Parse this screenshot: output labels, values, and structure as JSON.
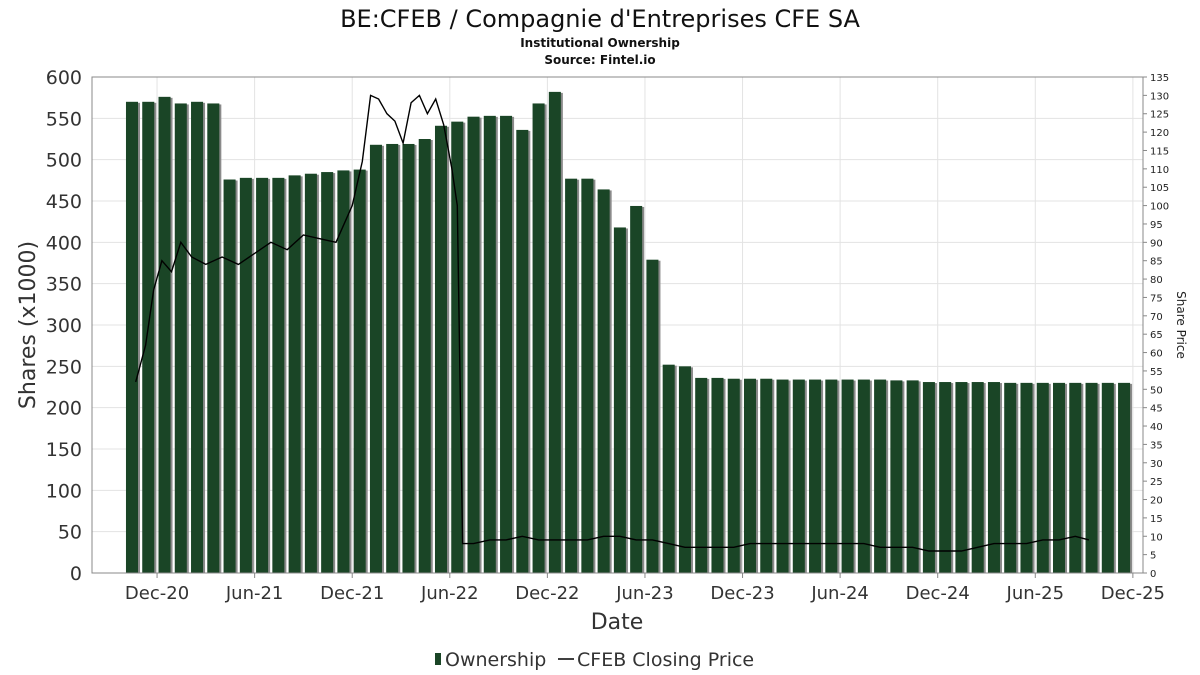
{
  "chart_data": {
    "type": "bar",
    "title": "BE:CFEB / Compagnie d'Entreprises CFE SA",
    "subtitle": "Institutional Ownership",
    "source": "Source: Fintel.io",
    "xlabel": "Date",
    "ylabel": "Shares (x1000)",
    "y2label": "Share Price",
    "ylim": [
      0,
      600
    ],
    "y2lim": [
      0,
      135
    ],
    "yticks": [
      0,
      50,
      100,
      150,
      200,
      250,
      300,
      350,
      400,
      450,
      500,
      550,
      600
    ],
    "y2ticks": [
      0,
      5,
      10,
      15,
      20,
      25,
      30,
      35,
      40,
      45,
      50,
      55,
      60,
      65,
      70,
      75,
      80,
      85,
      90,
      95,
      100,
      105,
      110,
      115,
      120,
      125,
      130,
      135
    ],
    "xticks": [
      "Dec-20",
      "Jun-21",
      "Dec-21",
      "Jun-22",
      "Dec-22",
      "Jun-23",
      "Dec-23",
      "Jun-24",
      "Dec-24",
      "Jun-25",
      "Dec-25"
    ],
    "grid": true,
    "legend_position": "bottom",
    "colors": {
      "ownership": "#1a4526",
      "ownership_shadow": "#8a8a8a",
      "price": "#000000",
      "grid": "#e3e3e3"
    },
    "series": [
      {
        "name": "Ownership",
        "type": "bar",
        "x_start": "2020-10-15",
        "x_step_months": 1,
        "values": [
          570,
          570,
          576,
          568,
          570,
          568,
          476,
          478,
          478,
          478,
          481,
          483,
          485,
          487,
          488,
          518,
          519,
          519,
          525,
          541,
          546,
          552,
          553,
          553,
          536,
          568,
          582,
          477,
          477,
          464,
          418,
          444,
          379,
          252,
          250,
          236,
          236,
          235,
          235,
          235,
          234,
          234,
          234,
          234,
          234,
          234,
          234,
          233,
          233,
          231,
          231,
          231,
          231,
          231,
          230,
          230,
          230,
          230,
          230,
          230,
          230,
          230
        ]
      },
      {
        "name": "CFEB Closing Price",
        "type": "line",
        "points": [
          [
            "2020-10-22",
            52
          ],
          [
            "2020-11-10",
            62
          ],
          [
            "2020-11-25",
            77
          ],
          [
            "2020-12-10",
            85
          ],
          [
            "2020-12-28",
            82
          ],
          [
            "2021-01-15",
            90
          ],
          [
            "2021-02-05",
            86
          ],
          [
            "2021-03-01",
            84
          ],
          [
            "2021-04-01",
            86
          ],
          [
            "2021-05-01",
            84
          ],
          [
            "2021-06-01",
            87
          ],
          [
            "2021-07-01",
            90
          ],
          [
            "2021-08-01",
            88
          ],
          [
            "2021-09-01",
            92
          ],
          [
            "2021-10-01",
            91
          ],
          [
            "2021-11-01",
            90
          ],
          [
            "2021-12-01",
            100
          ],
          [
            "2021-12-20",
            112
          ],
          [
            "2022-01-05",
            130
          ],
          [
            "2022-01-20",
            129
          ],
          [
            "2022-02-05",
            125
          ],
          [
            "2022-02-20",
            123
          ],
          [
            "2022-03-05",
            117
          ],
          [
            "2022-03-20",
            128
          ],
          [
            "2022-04-05",
            130
          ],
          [
            "2022-04-20",
            125
          ],
          [
            "2022-05-05",
            129
          ],
          [
            "2022-05-20",
            122
          ],
          [
            "2022-06-05",
            110
          ],
          [
            "2022-06-15",
            100
          ],
          [
            "2022-06-25",
            8
          ],
          [
            "2022-07-15",
            8
          ],
          [
            "2022-08-15",
            9
          ],
          [
            "2022-09-15",
            9
          ],
          [
            "2022-10-15",
            10
          ],
          [
            "2022-11-15",
            9
          ],
          [
            "2022-12-15",
            9
          ],
          [
            "2023-01-15",
            9
          ],
          [
            "2023-02-15",
            9
          ],
          [
            "2023-03-15",
            10
          ],
          [
            "2023-04-15",
            10
          ],
          [
            "2023-05-15",
            9
          ],
          [
            "2023-06-15",
            9
          ],
          [
            "2023-07-15",
            8
          ],
          [
            "2023-08-15",
            7
          ],
          [
            "2023-09-15",
            7
          ],
          [
            "2023-10-15",
            7
          ],
          [
            "2023-11-15",
            7
          ],
          [
            "2023-12-15",
            8
          ],
          [
            "2024-01-15",
            8
          ],
          [
            "2024-02-15",
            8
          ],
          [
            "2024-03-15",
            8
          ],
          [
            "2024-04-15",
            8
          ],
          [
            "2024-05-15",
            8
          ],
          [
            "2024-06-15",
            8
          ],
          [
            "2024-07-15",
            8
          ],
          [
            "2024-08-15",
            7
          ],
          [
            "2024-09-15",
            7
          ],
          [
            "2024-10-15",
            7
          ],
          [
            "2024-11-15",
            6
          ],
          [
            "2024-12-15",
            6
          ],
          [
            "2025-01-15",
            6
          ],
          [
            "2025-02-15",
            7
          ],
          [
            "2025-03-15",
            8
          ],
          [
            "2025-04-15",
            8
          ],
          [
            "2025-05-15",
            8
          ],
          [
            "2025-06-15",
            9
          ],
          [
            "2025-07-15",
            9
          ],
          [
            "2025-08-15",
            10
          ],
          [
            "2025-09-10",
            9
          ]
        ]
      }
    ]
  }
}
